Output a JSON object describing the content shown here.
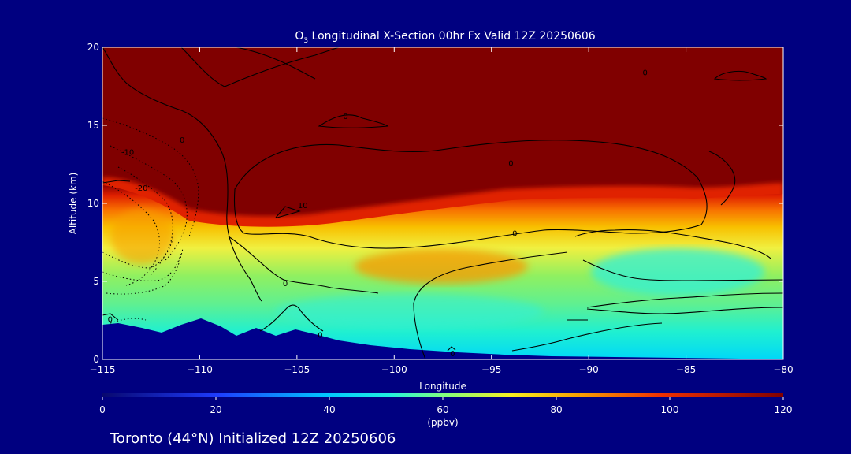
{
  "chart_data": {
    "type": "heatmap",
    "title_main": "O",
    "title_sub": "3",
    "title_rest": " Longitudinal X-Section 00hr  Fx Valid 12Z 20250606",
    "xlabel": "Longitude",
    "ylabel": "Altitude (km)",
    "xlim": [
      -115,
      -80
    ],
    "ylim": [
      0,
      20
    ],
    "x_ticks": [
      -115,
      -110,
      -105,
      -100,
      -95,
      -90,
      -85,
      -80
    ],
    "x_tick_labels": [
      "−115",
      "−110",
      "−105",
      "−100",
      "−95",
      "−90",
      "−85",
      "−80"
    ],
    "y_ticks": [
      0,
      5,
      10,
      15,
      20
    ],
    "y_tick_labels": [
      "0",
      "5",
      "10",
      "15",
      "20"
    ],
    "colorbar": {
      "range": [
        0,
        120
      ],
      "ticks": [
        0,
        20,
        40,
        60,
        80,
        100,
        120
      ],
      "tick_labels": [
        "0",
        "20",
        "40",
        "60",
        "80",
        "100",
        "120"
      ],
      "units": "(ppbv)"
    },
    "contour_labels": [
      {
        "text": "0",
        "lon": -110.9,
        "alt": 14.1
      },
      {
        "text": "0",
        "lon": -102.5,
        "alt": 15.6
      },
      {
        "text": "0",
        "lon": -94.0,
        "alt": 12.6
      },
      {
        "text": "0",
        "lon": -87.1,
        "alt": 18.4
      },
      {
        "text": "10",
        "lon": -104.7,
        "alt": 9.9
      },
      {
        "text": "0",
        "lon": -93.8,
        "alt": 8.1
      },
      {
        "text": "0",
        "lon": -105.6,
        "alt": 4.9
      },
      {
        "text": "0",
        "lon": -103.8,
        "alt": 1.6
      },
      {
        "text": "0",
        "lon": -97.0,
        "alt": 0.4
      },
      {
        "text": "0",
        "lon": -114.6,
        "alt": 2.6
      },
      {
        "text": "-10",
        "lon": -113.7,
        "alt": 13.3
      },
      {
        "text": "-20",
        "lon": -113.0,
        "alt": 11.0
      }
    ]
  },
  "footer": {
    "caption": "Toronto (44°N) Initialized 12Z 20250606"
  }
}
